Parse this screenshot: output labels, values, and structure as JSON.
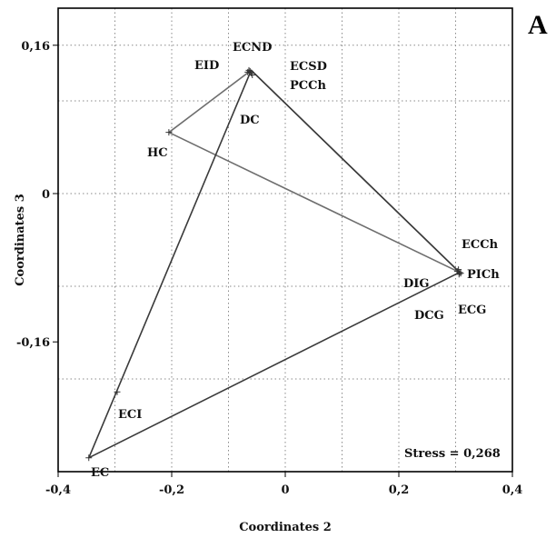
{
  "panel_label": "A",
  "chart_data": {
    "type": "scatter",
    "xlabel": "Coordinates 2",
    "ylabel": "Coordinates 3",
    "xlim": [
      -0.4,
      0.4
    ],
    "ylim": [
      -0.3,
      0.2
    ],
    "x_ticks": [
      {
        "value": -0.4,
        "label": "-0,4"
      },
      {
        "value": -0.2,
        "label": "-0,2"
      },
      {
        "value": 0,
        "label": "0"
      },
      {
        "value": 0.2,
        "label": "0,2"
      },
      {
        "value": 0.4,
        "label": "0,4"
      }
    ],
    "y_ticks": [
      {
        "value": 0.16,
        "label": "0,16"
      },
      {
        "value": 0,
        "label": "0"
      },
      {
        "value": -0.16,
        "label": "-0,16"
      }
    ],
    "x_grid": [
      -0.3,
      -0.2,
      -0.1,
      0,
      0.1,
      0.2,
      0.3
    ],
    "y_grid": [
      0.16,
      0.1,
      0,
      -0.1,
      -0.2
    ],
    "grid": true,
    "annotation": "Stress = 0,268",
    "points": [
      {
        "label": "EID",
        "x": -0.066,
        "y": 0.131
      },
      {
        "label": "ECND",
        "x": -0.064,
        "y": 0.133
      },
      {
        "label": "ECSD",
        "x": -0.062,
        "y": 0.132
      },
      {
        "label": "PCCh",
        "x": -0.06,
        "y": 0.13
      },
      {
        "label": "DC",
        "x": -0.058,
        "y": 0.128
      },
      {
        "label": "HC",
        "x": -0.205,
        "y": 0.066
      },
      {
        "label": "ECCh",
        "x": 0.305,
        "y": -0.082
      },
      {
        "label": "PICh",
        "x": 0.307,
        "y": -0.085
      },
      {
        "label": "DIG",
        "x": 0.303,
        "y": -0.084
      },
      {
        "label": "DCG",
        "x": 0.306,
        "y": -0.087
      },
      {
        "label": "ECG",
        "x": 0.309,
        "y": -0.086
      },
      {
        "label": "ECI",
        "x": -0.296,
        "y": -0.214
      },
      {
        "label": "EC",
        "x": -0.346,
        "y": -0.285
      }
    ],
    "hulls": [
      {
        "color": "#6e6e6e",
        "vertices": [
          [
            -0.06,
            0.133
          ],
          [
            -0.205,
            0.066
          ],
          [
            0.307,
            -0.085
          ]
        ]
      },
      {
        "color": "#3a3a3a",
        "vertices": [
          [
            -0.06,
            0.133
          ],
          [
            0.307,
            -0.085
          ],
          [
            -0.346,
            -0.285
          ]
        ]
      }
    ]
  }
}
